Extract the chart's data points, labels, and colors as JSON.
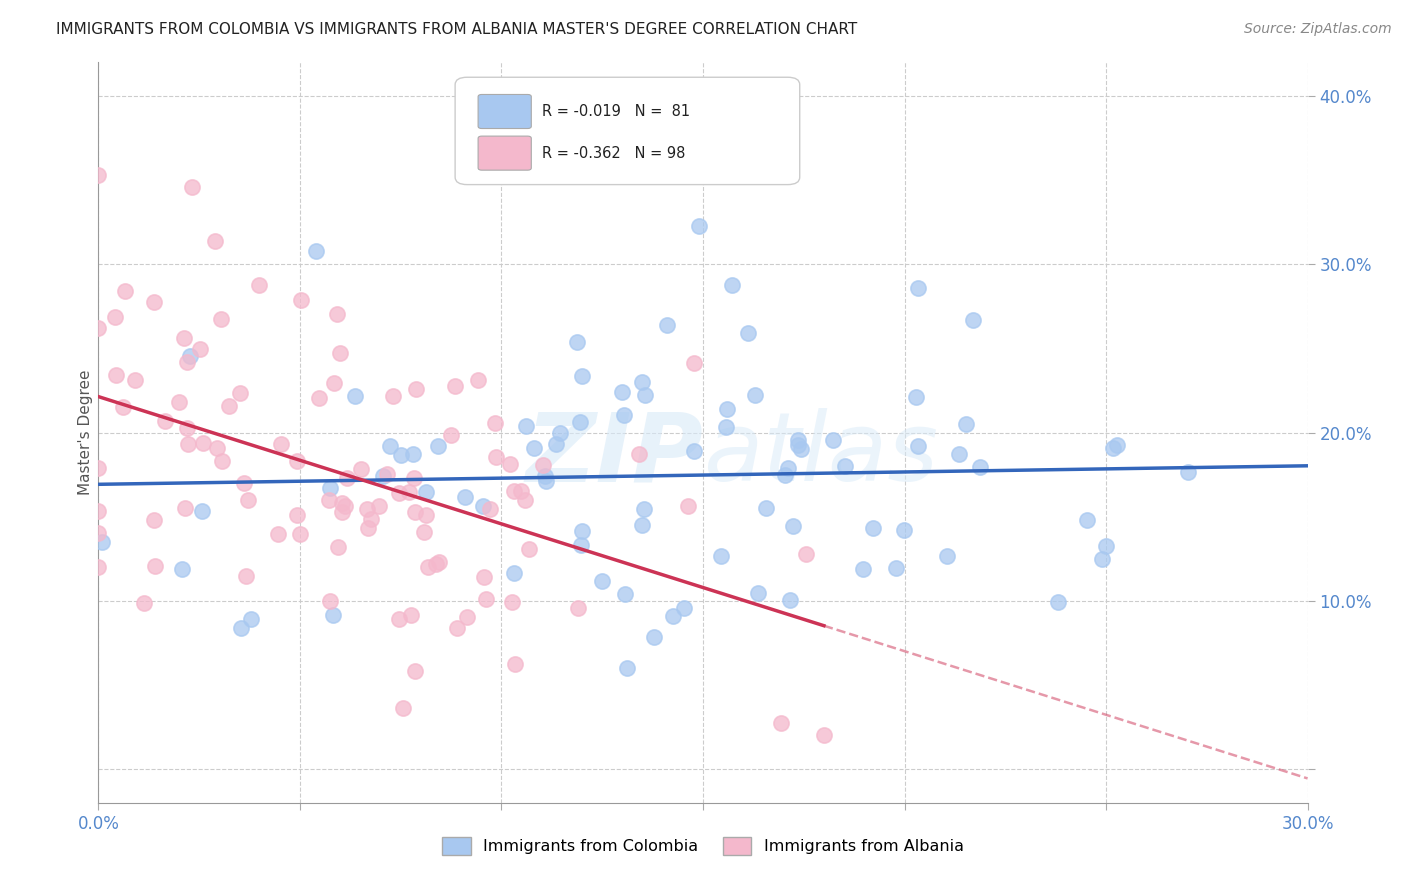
{
  "title": "IMMIGRANTS FROM COLOMBIA VS IMMIGRANTS FROM ALBANIA MASTER'S DEGREE CORRELATION CHART",
  "source": "Source: ZipAtlas.com",
  "ylabel": "Master's Degree",
  "watermark": "ZIPatlas",
  "colombia_color": "#a8c8f0",
  "albania_color": "#f4b8cc",
  "colombia_line_color": "#3366bb",
  "albania_line_color": "#cc3355",
  "background_color": "#ffffff",
  "grid_color": "#cccccc",
  "xlim": [
    0.0,
    0.3
  ],
  "ylim": [
    -0.02,
    0.42
  ],
  "ytick_positions": [
    0.0,
    0.1,
    0.2,
    0.3,
    0.4
  ],
  "ytick_labels": [
    "",
    "10.0%",
    "20.0%",
    "30.0%",
    "40.0%"
  ],
  "xtick_positions": [
    0.0,
    0.05,
    0.1,
    0.15,
    0.2,
    0.25,
    0.3
  ],
  "xtick_labels": [
    "0.0%",
    "",
    "",
    "",
    "",
    "",
    "30.0%"
  ],
  "legend_r1": "-0.019",
  "legend_n1": "81",
  "legend_r2": "-0.362",
  "legend_n2": "98"
}
